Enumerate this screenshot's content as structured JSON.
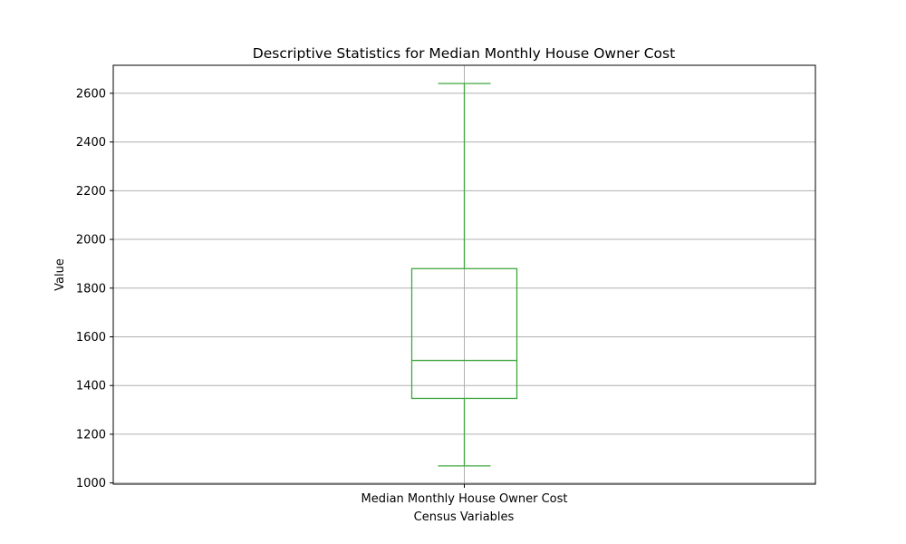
{
  "chart_data": {
    "type": "box",
    "title": "Descriptive Statistics for Median Monthly House Owner Cost",
    "xlabel": "Census Variables",
    "ylabel": "Value",
    "ylim": [
      995,
      2715
    ],
    "yticks": [
      1000,
      1200,
      1400,
      1600,
      1800,
      2000,
      2200,
      2400,
      2600
    ],
    "grid": true,
    "categories": [
      "Median Monthly House Owner Cost"
    ],
    "boxes": [
      {
        "name": "Median Monthly House Owner Cost",
        "whisker_low": 1070,
        "q1": 1347,
        "median": 1503,
        "q3": 1880,
        "whisker_high": 2640
      }
    ],
    "color": "#3fa73f"
  }
}
